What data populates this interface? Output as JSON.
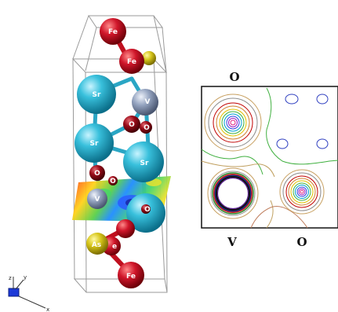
{
  "crystal": {
    "atoms": {
      "fe_top_1": "Fe",
      "fe_top_2": "Fe",
      "sr_1": "Sr",
      "v_1": "V",
      "o_1": "O",
      "sr_2": "Sr",
      "o_2": "O",
      "sr_3": "Sr",
      "o_3": "O",
      "o_4": "O",
      "v_2": "V",
      "o_5": "O",
      "as_1": "As",
      "fe_bottom_1": "e",
      "fe_bottom_2": "Fe"
    },
    "axes": {
      "z": "z",
      "y": "y",
      "x": "x"
    }
  },
  "contour_plot": {
    "top_label": "O",
    "bottom_left_label": "V",
    "bottom_right_label": "O"
  },
  "colors": {
    "fe": "#c0101f",
    "sr": "#2cb7d4",
    "v": "#8b9bb8",
    "o": "#8a0612",
    "as": "#c9b814",
    "bond": "#2aa6c4",
    "cell": "#9a9a9a"
  }
}
